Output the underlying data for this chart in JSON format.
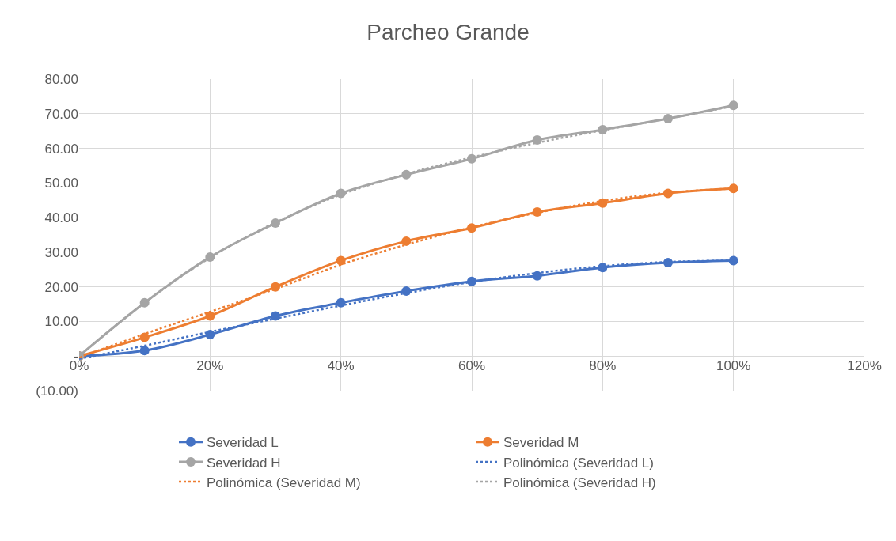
{
  "chart_data": {
    "type": "line",
    "title": "Parcheo Grande",
    "x": [
      0,
      10,
      20,
      30,
      40,
      50,
      60,
      70,
      80,
      90,
      100
    ],
    "xlim": [
      0,
      120
    ],
    "xticks": [
      {
        "value": 0,
        "label": "0%"
      },
      {
        "value": 20,
        "label": "20%"
      },
      {
        "value": 40,
        "label": "40%"
      },
      {
        "value": 60,
        "label": "60%"
      },
      {
        "value": 80,
        "label": "80%"
      },
      {
        "value": 100,
        "label": "100%"
      },
      {
        "value": 120,
        "label": "120%"
      }
    ],
    "ylim": [
      -10,
      80
    ],
    "yticks": [
      {
        "value": -10,
        "label": "(10.00)"
      },
      {
        "value": 0,
        "label": "-"
      },
      {
        "value": 10,
        "label": "10.00"
      },
      {
        "value": 20,
        "label": "20.00"
      },
      {
        "value": 30,
        "label": "30.00"
      },
      {
        "value": 40,
        "label": "40.00"
      },
      {
        "value": 50,
        "label": "50.00"
      },
      {
        "value": 60,
        "label": "60.00"
      },
      {
        "value": 70,
        "label": "70.00"
      },
      {
        "value": 80,
        "label": "80.00"
      }
    ],
    "grid": true,
    "legend": "bottom",
    "series": [
      {
        "name": "Severidad L",
        "color": "#4472c4",
        "marker": "circle",
        "line_style": "solid",
        "values": [
          0,
          1.6,
          6.2,
          11.6,
          15.4,
          18.8,
          21.6,
          23.2,
          25.6,
          27.0,
          27.6
        ]
      },
      {
        "name": "Severidad M",
        "color": "#ed7d31",
        "marker": "circle",
        "line_style": "solid",
        "values": [
          0,
          5.4,
          11.6,
          20.0,
          27.6,
          33.2,
          37.0,
          41.6,
          44.2,
          47.0,
          48.4
        ]
      },
      {
        "name": "Severidad H",
        "color": "#a5a5a5",
        "marker": "circle",
        "line_style": "solid",
        "values": [
          0,
          15.4,
          28.6,
          38.4,
          47.0,
          52.4,
          57.0,
          62.4,
          65.4,
          68.6,
          72.4
        ]
      },
      {
        "name": "Polinómica (Severidad L)",
        "color": "#4472c4",
        "marker": "none",
        "line_style": "dotted",
        "values": [
          -0.8,
          3.0,
          7.0,
          10.8,
          14.6,
          18.2,
          21.4,
          24.0,
          26.0,
          27.2,
          27.6
        ]
      },
      {
        "name": "Polinómica (Severidad M)",
        "color": "#ed7d31",
        "marker": "none",
        "line_style": "dotted",
        "values": [
          -0.4,
          6.4,
          12.8,
          19.4,
          26.4,
          32.2,
          37.2,
          41.4,
          44.8,
          47.2,
          48.4
        ]
      },
      {
        "name": "Polinómica (Severidad H)",
        "color": "#a5a5a5",
        "marker": "none",
        "line_style": "dotted",
        "values": [
          0,
          15.4,
          28.4,
          38.6,
          46.6,
          52.6,
          57.4,
          61.6,
          65.2,
          68.6,
          72.2
        ]
      }
    ]
  }
}
